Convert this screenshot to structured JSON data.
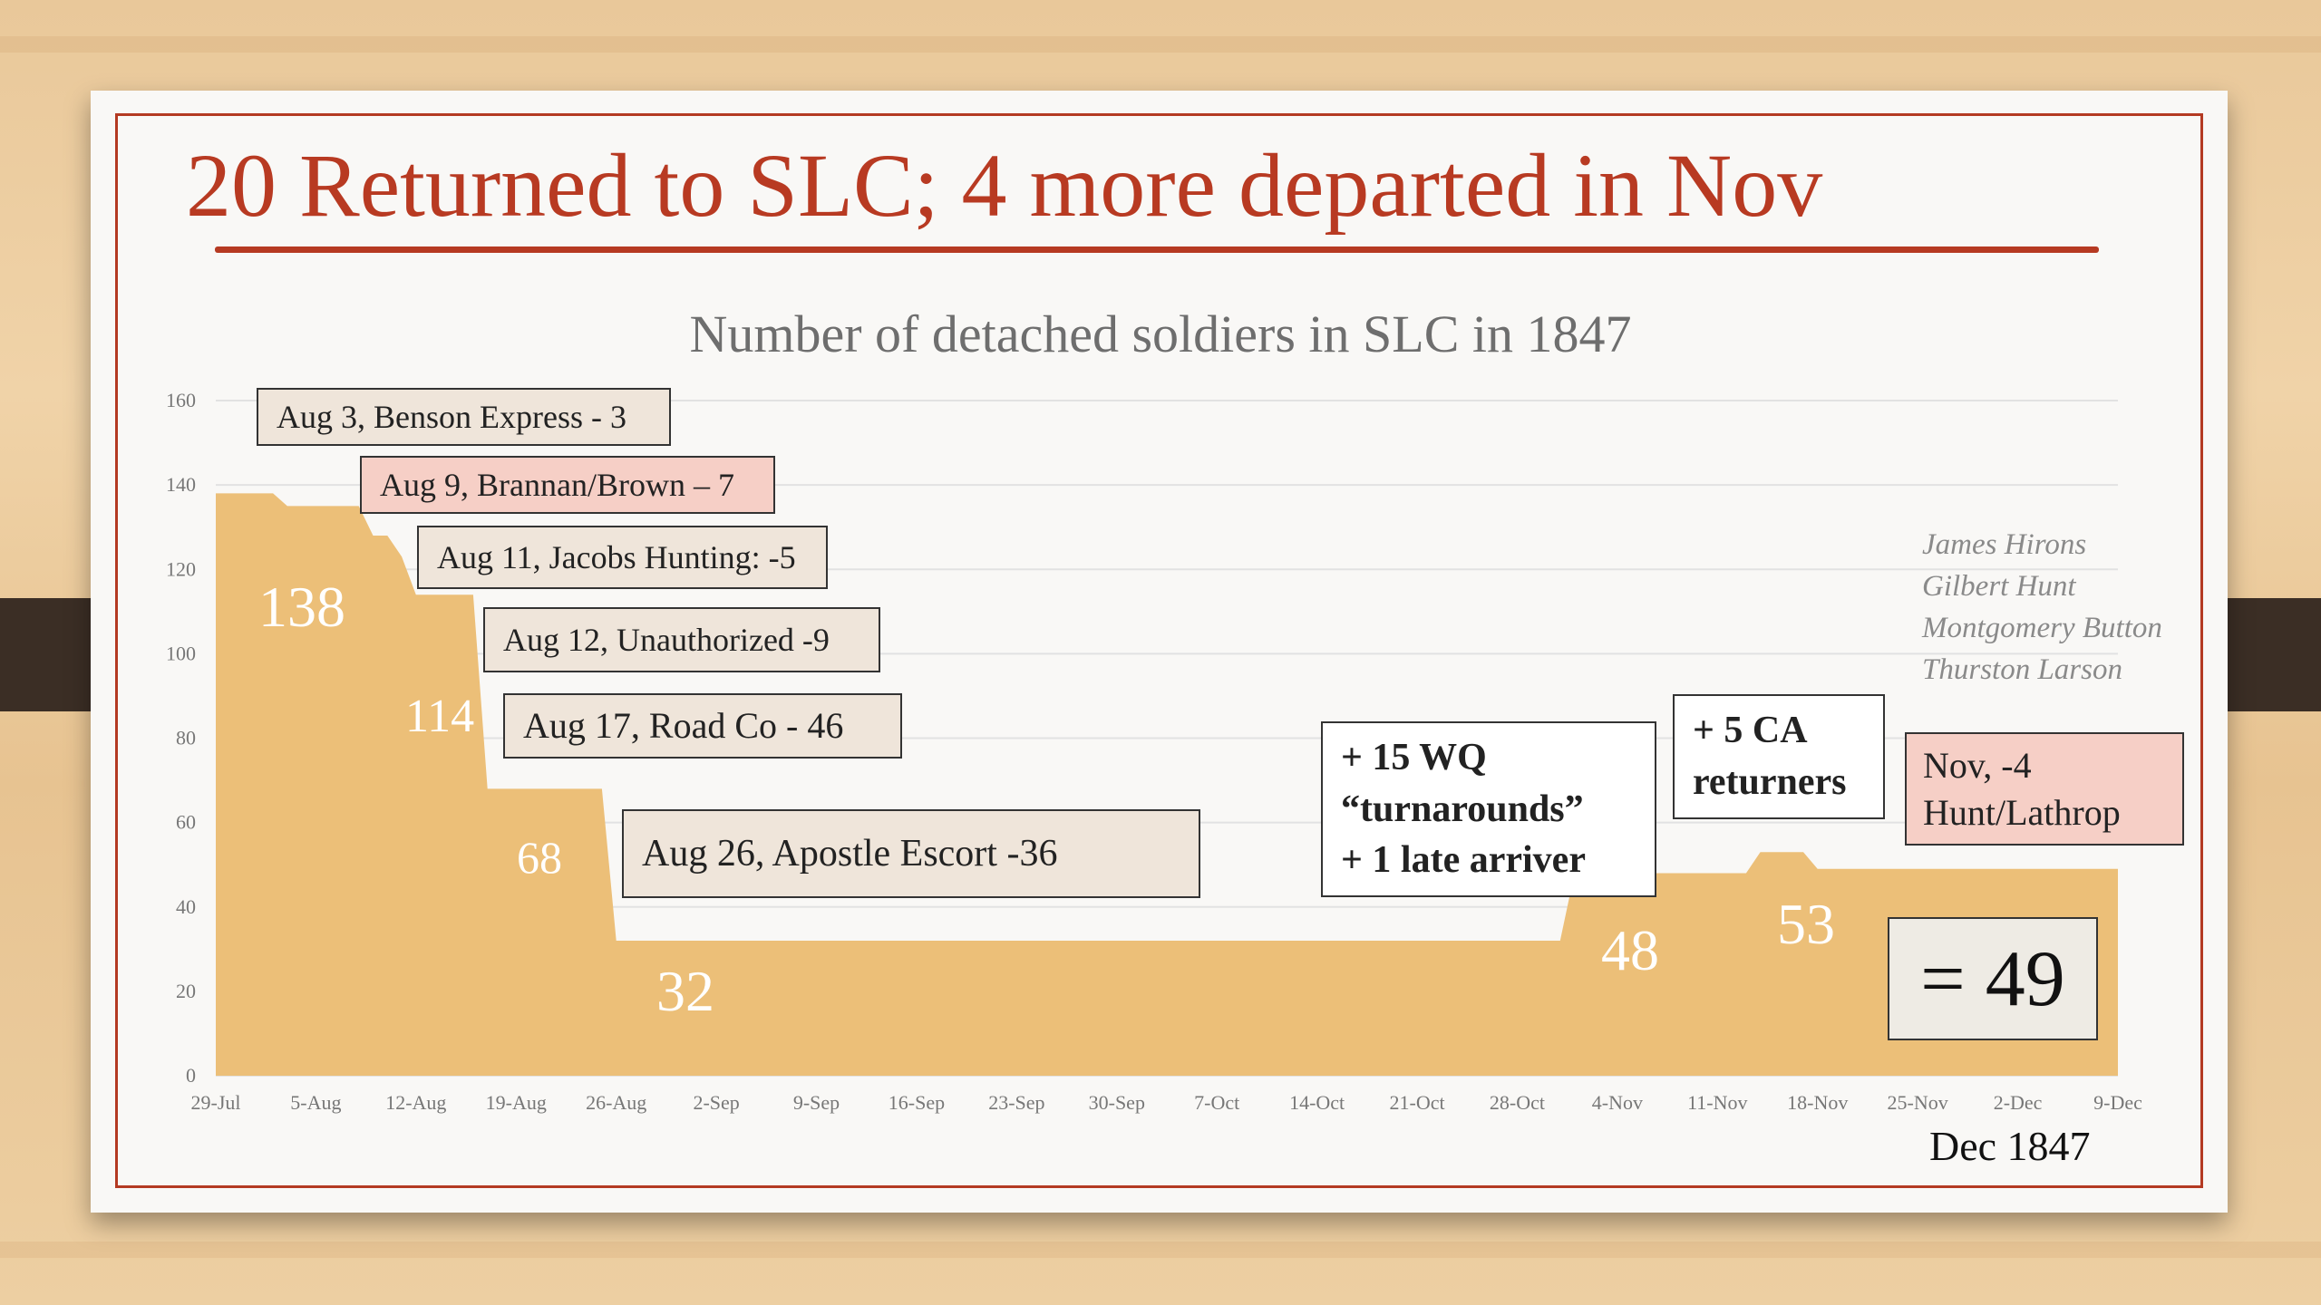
{
  "slide": {
    "title": "20 Returned to SLC; 4 more departed in Nov",
    "date_label": "Dec 1847",
    "total_label": "= 49",
    "names": [
      "James Hirons",
      "Gilbert Hunt",
      "Montgomery Button",
      "Thurston Larson"
    ],
    "callouts": {
      "benson": "Aug 3, Benson Express - 3",
      "brannan": "Aug 9, Brannan/Brown – 7",
      "jacobs": "Aug 11, Jacobs Hunting: -5",
      "unauthorized": "Aug 12, Unauthorized  -9",
      "roadco": "Aug 17, Road Co - 46",
      "apostle": "Aug 26, Apostle Escort -36",
      "wq": "+ 15 WQ\n“turnarounds”\n+ 1 late arriver",
      "ca": "+ 5 CA\nreturners",
      "nov": "Nov, -4\nHunt/Lathrop"
    },
    "bar_labels": {
      "l138": "138",
      "l114": "114",
      "l68": "68",
      "l32": "32",
      "l48": "48",
      "l53": "53"
    }
  },
  "colors": {
    "fill": "#ecbf78",
    "title": "#b83a22",
    "frame": "#b43a22",
    "callout_tan": "#efe5da",
    "callout_pink": "#f6cfc6"
  },
  "chart_data": {
    "type": "area",
    "title": "Number of detached soldiers in SLC in 1847",
    "xlabel": "",
    "ylabel": "",
    "ylim": [
      0,
      160
    ],
    "yticks": [
      0,
      20,
      40,
      60,
      80,
      100,
      120,
      140,
      160
    ],
    "xlim": [
      "1847-07-29",
      "1847-12-09"
    ],
    "xtick_labels": [
      "29-Jul",
      "5-Aug",
      "12-Aug",
      "19-Aug",
      "26-Aug",
      "2-Sep",
      "9-Sep",
      "16-Sep",
      "23-Sep",
      "30-Sep",
      "7-Oct",
      "14-Oct",
      "21-Oct",
      "28-Oct",
      "4-Nov",
      "11-Nov",
      "18-Nov",
      "25-Nov",
      "2-Dec",
      "9-Dec"
    ],
    "grid": true,
    "series": [
      {
        "values": [
          {
            "x": "1847-07-29",
            "y": 138
          },
          {
            "x": "1847-08-02",
            "y": 138
          },
          {
            "x": "1847-08-03",
            "y": 135
          },
          {
            "x": "1847-08-08",
            "y": 135
          },
          {
            "x": "1847-08-09",
            "y": 128
          },
          {
            "x": "1847-08-10",
            "y": 128
          },
          {
            "x": "1847-08-11",
            "y": 123
          },
          {
            "x": "1847-08-12",
            "y": 114
          },
          {
            "x": "1847-08-16",
            "y": 114
          },
          {
            "x": "1847-08-17",
            "y": 68
          },
          {
            "x": "1847-08-25",
            "y": 68
          },
          {
            "x": "1847-08-26",
            "y": 32
          },
          {
            "x": "1847-10-31",
            "y": 32
          },
          {
            "x": "1847-11-01",
            "y": 48
          },
          {
            "x": "1847-11-13",
            "y": 48
          },
          {
            "x": "1847-11-14",
            "y": 53
          },
          {
            "x": "1847-11-17",
            "y": 53
          },
          {
            "x": "1847-11-18",
            "y": 49
          },
          {
            "x": "1847-12-09",
            "y": 49
          }
        ]
      }
    ]
  }
}
